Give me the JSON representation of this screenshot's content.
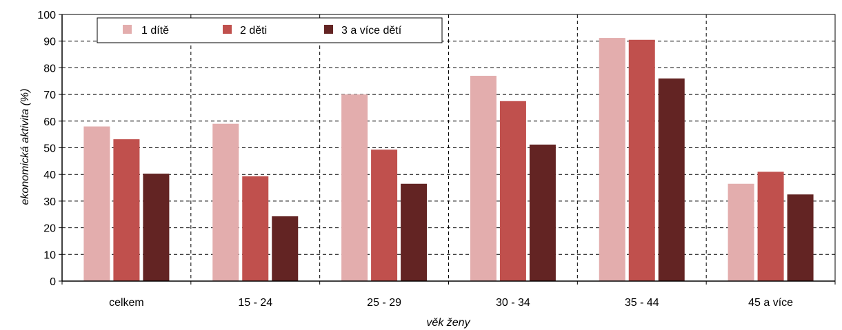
{
  "chart_data": {
    "type": "bar",
    "title": "",
    "xlabel": "věk ženy",
    "ylabel": "ekonomická aktivita (%)",
    "ylim": [
      0,
      100
    ],
    "yticks": [
      0,
      10,
      20,
      30,
      40,
      50,
      60,
      70,
      80,
      90,
      100
    ],
    "grid": "dashed",
    "legend_position": "top-left",
    "categories": [
      "celkem",
      "15 - 24",
      "25 - 29",
      "30 - 34",
      "35 - 44",
      "45 a více"
    ],
    "series": [
      {
        "name": "1 dítě",
        "color": "#e3adad",
        "values": [
          58,
          59,
          70,
          77,
          91.2,
          36.5
        ]
      },
      {
        "name": "2 děti",
        "color": "#c0504d",
        "values": [
          53.2,
          39.3,
          49.3,
          67.5,
          90.5,
          41
        ]
      },
      {
        "name": "3 a více dětí",
        "color": "#632423",
        "values": [
          40.3,
          24.3,
          36.5,
          51.2,
          76,
          32.5
        ]
      }
    ]
  }
}
